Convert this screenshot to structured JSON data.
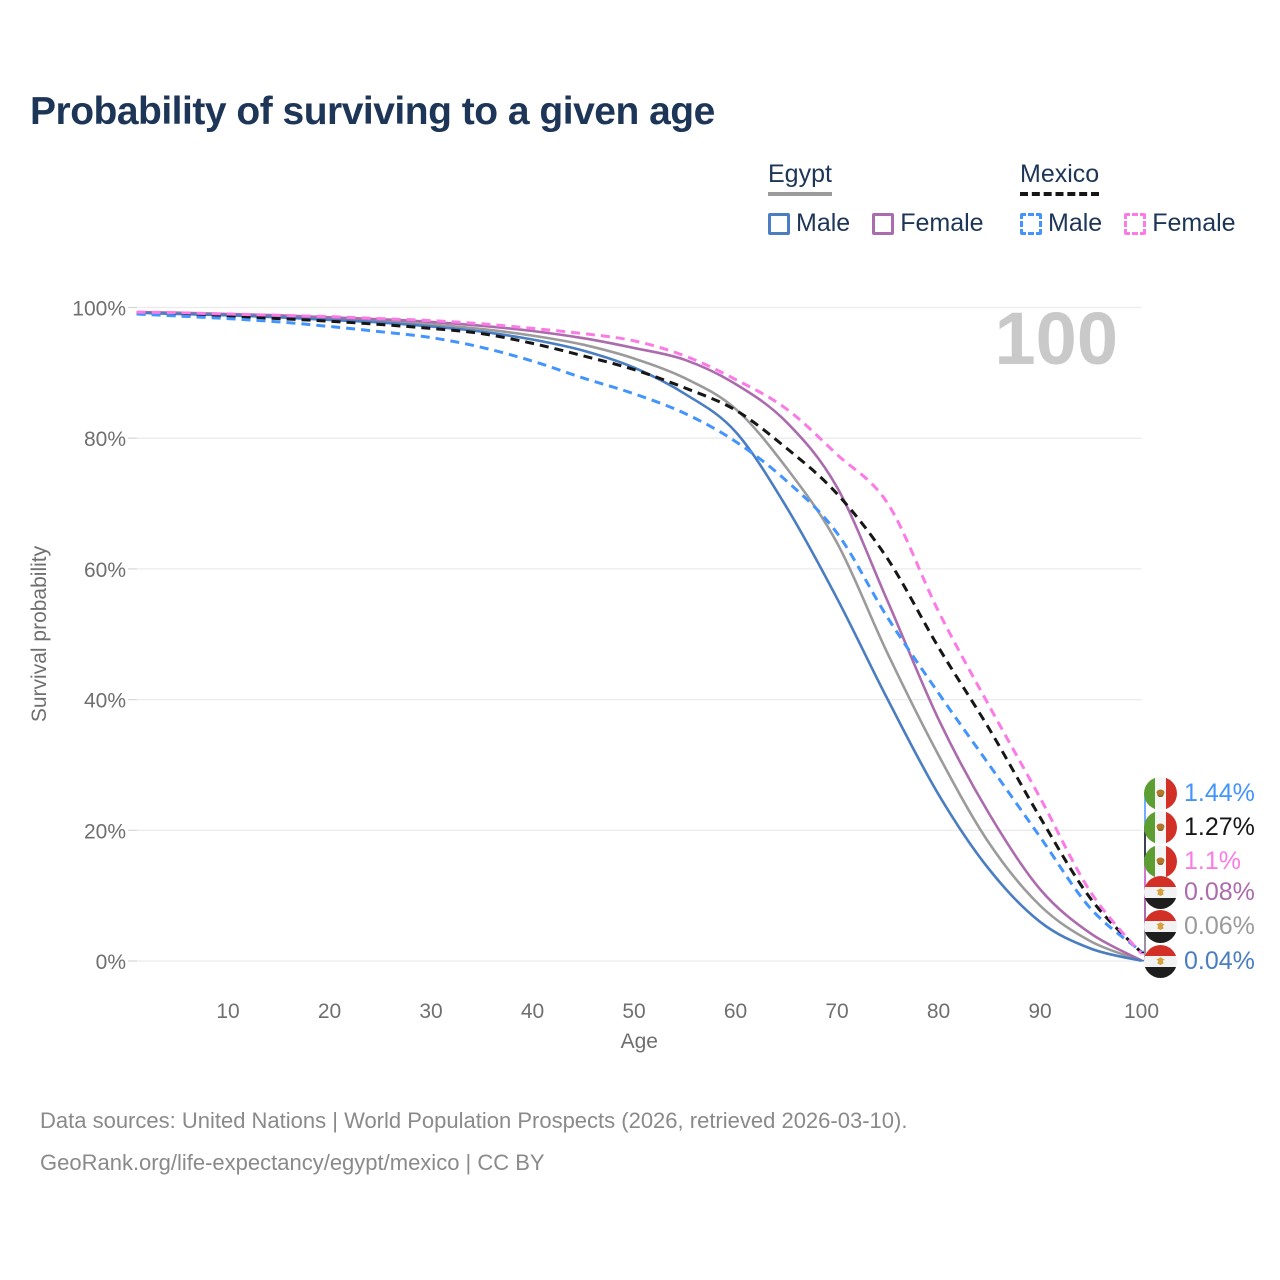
{
  "title": "Probability of surviving to a given age",
  "watermark_age": "100",
  "legend": {
    "groups": [
      {
        "label": "Egypt",
        "line_style": "solid",
        "underline_color": "#9b9b9b",
        "items": [
          {
            "label": "Male",
            "color": "#4a7dc2"
          },
          {
            "label": "Female",
            "color": "#ab6bad"
          }
        ]
      },
      {
        "label": "Mexico",
        "line_style": "dashed",
        "underline_color": "#161616",
        "items": [
          {
            "label": "Male",
            "color": "#4394fd"
          },
          {
            "label": "Female",
            "color": "#fb7be6"
          }
        ]
      }
    ]
  },
  "chart_data": {
    "type": "line",
    "title": "Probability of surviving to a given age",
    "xlabel": "Age",
    "ylabel": "Survival probability",
    "xlim": [
      1,
      100
    ],
    "ylim": [
      0,
      100
    ],
    "grid": "horizontal",
    "legend_position": "top-right",
    "x_ticks": [
      10,
      20,
      30,
      40,
      50,
      60,
      70,
      80,
      90,
      100
    ],
    "y_ticks": [
      {
        "value": 0,
        "label": "0%"
      },
      {
        "value": 20,
        "label": "20%"
      },
      {
        "value": 40,
        "label": "40%"
      },
      {
        "value": 60,
        "label": "60%"
      },
      {
        "value": 80,
        "label": "80%"
      },
      {
        "value": 100,
        "label": "100%"
      }
    ],
    "ages": [
      1,
      5,
      10,
      15,
      20,
      25,
      30,
      35,
      40,
      45,
      50,
      55,
      60,
      65,
      70,
      75,
      80,
      85,
      90,
      95,
      100
    ],
    "series": [
      {
        "id": "egypt_both",
        "name": "Egypt (both sexes)",
        "country": "Egypt",
        "color": "#9b9b9b",
        "dash": "solid",
        "width": 2.6,
        "values": [
          99.25,
          99.1,
          98.9,
          98.6,
          98.3,
          97.9,
          97.4,
          96.7,
          95.7,
          94.3,
          92.2,
          89.2,
          84.5,
          75.5,
          64.0,
          47.0,
          31.5,
          18.0,
          8.5,
          3.0,
          0.06
        ],
        "end_label": "0.06%"
      },
      {
        "id": "egypt_female",
        "name": "Egypt Female",
        "country": "Egypt",
        "color": "#ab6bad",
        "dash": "solid",
        "width": 2.6,
        "values": [
          99.3,
          99.2,
          99.0,
          98.8,
          98.5,
          98.2,
          97.8,
          97.2,
          96.4,
          95.3,
          93.8,
          92.0,
          88.3,
          82.5,
          72.5,
          55.0,
          37.0,
          22.5,
          11.0,
          4.2,
          0.08
        ],
        "end_label": "0.08%"
      },
      {
        "id": "egypt_male",
        "name": "Egypt Male",
        "country": "Egypt",
        "color": "#4a7dc2",
        "dash": "solid",
        "width": 2.6,
        "values": [
          99.2,
          99.0,
          98.8,
          98.5,
          98.1,
          97.7,
          97.1,
          96.3,
          95.1,
          93.4,
          90.8,
          86.8,
          81.0,
          69.5,
          55.5,
          40.0,
          25.5,
          14.0,
          6.0,
          1.9,
          0.04
        ],
        "end_label": "0.04%"
      },
      {
        "id": "mexico_both",
        "name": "Mexico (both sexes)",
        "country": "Mexico",
        "color": "#161616",
        "dash": "dashed",
        "width": 3,
        "values": [
          99.1,
          98.9,
          98.6,
          98.3,
          97.9,
          97.4,
          96.8,
          96.0,
          94.5,
          92.6,
          90.5,
          87.7,
          84.3,
          78.5,
          71.5,
          61.5,
          48.0,
          35.5,
          22.0,
          9.5,
          1.27
        ],
        "end_label": "1.27%"
      },
      {
        "id": "mexico_male",
        "name": "Mexico Male",
        "country": "Mexico",
        "color": "#4394fd",
        "dash": "dashed",
        "width": 3,
        "values": [
          99.0,
          98.7,
          98.3,
          97.8,
          97.1,
          96.3,
          95.4,
          93.9,
          91.8,
          89.2,
          86.8,
          83.8,
          79.5,
          73.5,
          65.5,
          52.5,
          41.0,
          30.0,
          19.0,
          8.0,
          1.44
        ],
        "end_label": "1.44%"
      },
      {
        "id": "mexico_female",
        "name": "Mexico Female",
        "country": "Mexico",
        "color": "#fb7be6",
        "dash": "dashed",
        "width": 3,
        "values": [
          99.3,
          99.2,
          99.0,
          98.8,
          98.6,
          98.3,
          98.0,
          97.5,
          96.8,
          96.0,
          94.9,
          92.6,
          89.0,
          84.5,
          77.5,
          70.0,
          53.5,
          39.0,
          25.0,
          10.5,
          1.1
        ],
        "end_label": "1.1%"
      }
    ],
    "end_labels": [
      {
        "series": "mexico_male",
        "flag": "mexico",
        "value": "1.44%"
      },
      {
        "series": "mexico_both",
        "flag": "mexico",
        "value": "1.27%"
      },
      {
        "series": "mexico_female",
        "flag": "mexico",
        "value": "1.1%"
      },
      {
        "series": "egypt_female",
        "flag": "egypt",
        "value": "0.08%"
      },
      {
        "series": "egypt_both",
        "flag": "egypt",
        "value": "0.06%"
      },
      {
        "series": "egypt_male",
        "flag": "egypt",
        "value": "0.04%"
      }
    ]
  },
  "footer": {
    "line1": "Data sources: United Nations | World Population Prospects (2026, retrieved 2026-03-10).",
    "line2": "GeoRank.org/life-expectancy/egypt/mexico | CC BY"
  }
}
